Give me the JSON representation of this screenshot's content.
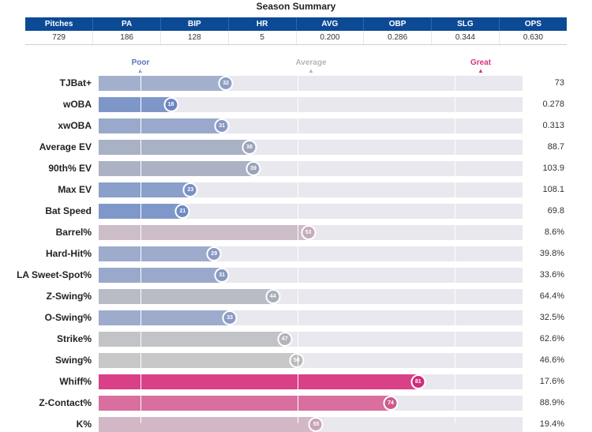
{
  "title": "Season Summary",
  "summary": {
    "headers": [
      "Pitches",
      "PA",
      "BIP",
      "HR",
      "AVG",
      "OBP",
      "SLG",
      "OPS"
    ],
    "values": [
      "729",
      "186",
      "128",
      "5",
      "0.200",
      "0.286",
      "0.344",
      "0.630"
    ]
  },
  "anchors": {
    "poor": "Poor",
    "average": "Average",
    "great": "Great",
    "poor_color": "#5a74b8",
    "average_color": "#b5b5b5",
    "great_color": "#d6337f"
  },
  "chart_data": {
    "type": "bar",
    "orientation": "horizontal",
    "scale": "percentile",
    "xlim": [
      0,
      100
    ],
    "categories": [
      "TJBat+",
      "wOBA",
      "xwOBA",
      "Average EV",
      "90th% EV",
      "Max EV",
      "Bat Speed",
      "Barrel%",
      "Hard-Hit%",
      "LA Sweet-Spot%",
      "Z-Swing%",
      "O-Swing%",
      "Strike%",
      "Swing%",
      "Whiff%",
      "Z-Contact%",
      "K%"
    ],
    "percentiles": [
      32,
      18,
      31,
      38,
      39,
      23,
      21,
      53,
      29,
      31,
      44,
      33,
      47,
      50,
      81,
      74,
      55
    ],
    "stat_values": [
      "73",
      "0.278",
      "0.313",
      "88.7",
      "103.9",
      "108.1",
      "69.8",
      "8.6%",
      "39.8%",
      "33.6%",
      "64.4%",
      "32.5%",
      "62.6%",
      "46.6%",
      "17.6%",
      "88.9%",
      "19.4%"
    ],
    "colors": [
      "#a3b0cd",
      "#7f96c9",
      "#9aa9cb",
      "#a9b1c5",
      "#aab2c4",
      "#8aa0cb",
      "#8098c9",
      "#cdbdc9",
      "#9dabcc",
      "#9aa9cb",
      "#b8bcc5",
      "#9dabcc",
      "#c2c3c7",
      "#c8c8c8",
      "#d94088",
      "#d86f9e",
      "#d2b8c6"
    ],
    "bubble_colors": [
      "#8d9cc2",
      "#6b86c2",
      "#8898c4",
      "#9aa3bb",
      "#9ba4ba",
      "#7890c4",
      "#6e8ac3",
      "#c4abba",
      "#8a9ac5",
      "#8898c4",
      "#aaaeb8",
      "#8a9ac5",
      "#b3b4b9",
      "#bbbbbb",
      "#d02c7a",
      "#cd5a8e",
      "#c9a3b6"
    ]
  }
}
